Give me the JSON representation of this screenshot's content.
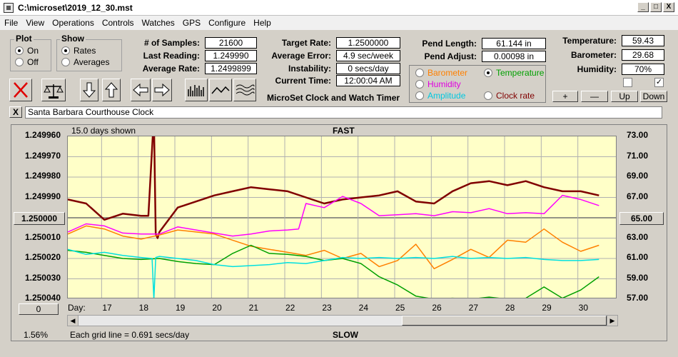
{
  "window": {
    "title": "C:\\microset\\2019_12_30.mst",
    "min": "_",
    "max": "□",
    "close": "X"
  },
  "menu": [
    "File",
    "View",
    "Operations",
    "Controls",
    "Watches",
    "GPS",
    "Configure",
    "Help"
  ],
  "plot_group": {
    "title": "Plot",
    "on": "On",
    "off": "Off"
  },
  "show_group": {
    "title": "Show",
    "rates": "Rates",
    "averages": "Averages"
  },
  "stats": {
    "samples_label": "# of Samples:",
    "samples": "21600",
    "last_label": "Last Reading:",
    "last": "1.249990",
    "avg_label": "Average Rate:",
    "avg": "1.2499899"
  },
  "target": {
    "rate_label": "Target Rate:",
    "rate": "1.2500000",
    "error_label": "Average Error:",
    "error": "4.9 sec/week",
    "instab_label": "Instability:",
    "instab": "0 secs/day",
    "time_label": "Current Time:",
    "time": "12:00:04 AM",
    "subtitle": "MicroSet Clock and Watch Timer"
  },
  "pend": {
    "length_label": "Pend Length:",
    "length": "61.144 in",
    "adjust_label": "Pend Adjust:",
    "adjust": "0.00098 in"
  },
  "channels": {
    "barometer": "Barometer",
    "temperature": "Temperature",
    "humidity": "Humidity",
    "amplitude": "Amplitude",
    "clock_rate": "Clock rate"
  },
  "env": {
    "temp_label": "Temperature:",
    "temp": "59.43",
    "baro_label": "Barometer:",
    "baro": "29.68",
    "hum_label": "Humidity:",
    "hum": "70%"
  },
  "env_buttons": {
    "plus": "+",
    "minus": "—",
    "up": "Up",
    "down": "Down"
  },
  "watch_close": "X",
  "watch_name": "Santa Barbara Courthouse Clock",
  "colors": {
    "rate": "#800000",
    "barometer": "#ff8000",
    "temperature": "#00a000",
    "humidity": "#ff00ff",
    "amplitude": "#00e0e0"
  },
  "chart_data": {
    "type": "line",
    "days_shown": "15.0 days shown",
    "top_label": "FAST",
    "bottom_label": "SLOW",
    "grid_note": "Each grid line = 0.691 secs/day",
    "percent": "1.56%",
    "x_axis_label": "Day:",
    "center_left_button": "1.250000",
    "center_right_button": "65.00",
    "bottom_left_button": "0",
    "left_ticks": [
      "1.249960",
      "1.249970",
      "1.249980",
      "1.249990",
      "1.250000",
      "1.250010",
      "1.250020",
      "1.250030",
      "1.250040"
    ],
    "right_ticks": [
      "73.00",
      "71.00",
      "69.00",
      "67.00",
      "65.00",
      "63.00",
      "61.00",
      "59.00",
      "57.00"
    ],
    "x_ticks": [
      "17",
      "18",
      "19",
      "20",
      "21",
      "22",
      "23",
      "24",
      "25",
      "26",
      "27",
      "28",
      "29",
      "30"
    ],
    "xlim": [
      16,
      31
    ],
    "left_ylim": [
      1.24996,
      1.25004
    ],
    "right_ylim": [
      57,
      73
    ],
    "series": [
      {
        "key": "rate",
        "axis": "left",
        "x": [
          16.0,
          16.5,
          17.0,
          17.5,
          18.0,
          18.2,
          18.35,
          18.4,
          18.45,
          18.5,
          19.0,
          19.5,
          20.0,
          20.5,
          21.0,
          21.5,
          22.0,
          22.5,
          23.0,
          23.5,
          24.0,
          24.5,
          25.0,
          25.5,
          26.0,
          26.5,
          27.0,
          27.5,
          28.0,
          28.5,
          29.0,
          29.5,
          30.0,
          30.5
        ],
        "y": [
          1.249991,
          1.249993,
          1.250001,
          1.249998,
          1.249999,
          1.249999,
          1.24995,
          1.250008,
          1.25001,
          1.250007,
          1.249995,
          1.249992,
          1.249989,
          1.249987,
          1.249985,
          1.249986,
          1.249987,
          1.24999,
          1.249993,
          1.249991,
          1.24999,
          1.249989,
          1.249987,
          1.249992,
          1.249993,
          1.249987,
          1.249983,
          1.249982,
          1.249984,
          1.249982,
          1.249985,
          1.249987,
          1.249987,
          1.249989
        ]
      },
      {
        "key": "humidity",
        "axis": "right",
        "x": [
          16.0,
          16.5,
          17.0,
          17.5,
          18.0,
          18.5,
          19.0,
          19.5,
          20.0,
          20.5,
          21.0,
          21.5,
          22.0,
          22.3,
          22.5,
          23.0,
          23.5,
          24.0,
          24.5,
          25.0,
          25.5,
          26.0,
          26.5,
          27.0,
          27.5,
          28.0,
          28.5,
          29.0,
          29.5,
          30.0,
          30.5
        ],
        "y": [
          63.6,
          64.4,
          64.2,
          63.5,
          63.4,
          63.4,
          64.1,
          63.8,
          63.5,
          63.2,
          63.4,
          63.7,
          63.8,
          63.9,
          66.4,
          66.0,
          67.1,
          66.4,
          65.2,
          65.3,
          65.4,
          65.2,
          65.6,
          65.5,
          65.9,
          65.4,
          65.5,
          65.4,
          67.2,
          66.8,
          66.2
        ]
      },
      {
        "key": "barometer",
        "axis": "right",
        "x": [
          16.0,
          16.5,
          17.0,
          17.5,
          18.0,
          18.5,
          19.0,
          19.5,
          20.0,
          20.5,
          21.0,
          21.5,
          22.0,
          22.5,
          23.0,
          23.5,
          24.0,
          24.5,
          25.0,
          25.5,
          26.0,
          26.5,
          27.0,
          27.5,
          28.0,
          28.5,
          29.0,
          29.5,
          30.0,
          30.5
        ],
        "y": [
          63.4,
          64.2,
          63.9,
          63.2,
          62.9,
          63.3,
          63.8,
          63.6,
          63.4,
          62.8,
          62.2,
          61.9,
          61.6,
          61.3,
          61.8,
          61.0,
          61.5,
          60.2,
          60.8,
          62.4,
          60.0,
          60.9,
          61.9,
          61.1,
          62.8,
          62.6,
          63.9,
          62.6,
          61.7,
          62.3
        ]
      },
      {
        "key": "temperature",
        "axis": "right",
        "x": [
          16.0,
          16.5,
          17.0,
          17.5,
          18.0,
          18.5,
          19.0,
          19.5,
          20.0,
          20.5,
          21.0,
          21.5,
          22.0,
          22.5,
          23.0,
          23.5,
          24.0,
          24.5,
          25.0,
          25.5,
          26.0,
          26.5,
          27.0,
          27.5,
          28.0,
          28.5,
          29.0,
          29.5,
          30.0,
          30.5
        ],
        "y": [
          61.8,
          61.6,
          61.3,
          61.0,
          60.9,
          61.0,
          60.7,
          60.5,
          60.4,
          61.5,
          62.3,
          61.5,
          61.4,
          61.2,
          60.8,
          61.0,
          60.5,
          59.2,
          58.4,
          57.3,
          57.0,
          57.1,
          57.0,
          57.2,
          57.0,
          57.1,
          58.2,
          57.1,
          57.9,
          59.2
        ]
      },
      {
        "key": "amplitude",
        "axis": "right",
        "x": [
          16.0,
          16.5,
          17.0,
          17.5,
          18.0,
          18.3,
          18.35,
          18.4,
          18.5,
          19.0,
          19.5,
          20.0,
          20.5,
          21.0,
          21.5,
          22.0,
          22.5,
          23.0,
          23.5,
          24.0,
          24.5,
          25.0,
          25.5,
          26.0,
          26.5,
          27.0,
          27.5,
          28.0,
          28.5,
          29.0,
          29.5,
          30.0,
          30.5
        ],
        "y": [
          61.9,
          61.4,
          61.6,
          61.3,
          61.1,
          61.0,
          57.0,
          61.1,
          61.2,
          61.0,
          60.8,
          60.4,
          60.2,
          60.3,
          60.4,
          60.6,
          60.5,
          60.8,
          61.1,
          61.0,
          61.1,
          61.0,
          61.1,
          61.0,
          61.2,
          61.0,
          61.1,
          61.0,
          61.1,
          60.9,
          60.8,
          60.8,
          60.9
        ]
      }
    ]
  }
}
